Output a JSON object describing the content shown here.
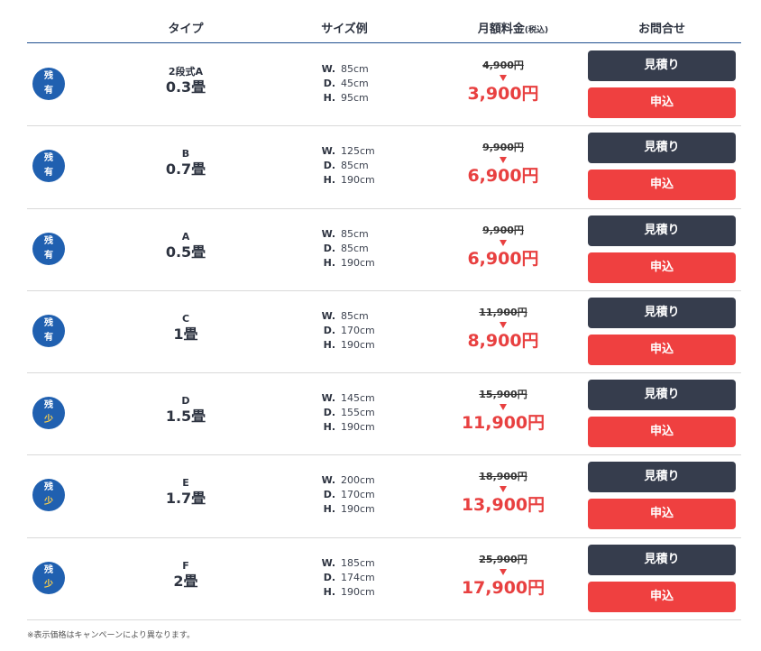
{
  "header": {
    "type": "タイプ",
    "size": "サイズ例",
    "price_main": "月額料金",
    "price_tax": "(税込)",
    "contact": "お問合せ"
  },
  "rows": [
    {
      "stock": [
        "残",
        "有"
      ],
      "stock_level": "有",
      "type": "2段式A",
      "tatami": "0.3畳",
      "w": "85cm",
      "d": "45cm",
      "h": "95cm",
      "old_price": "4,900円",
      "new_price": "3,900円",
      "quote": "見積り",
      "apply": "申込"
    },
    {
      "stock": [
        "残",
        "有"
      ],
      "stock_level": "有",
      "type": "B",
      "tatami": "0.7畳",
      "w": "125cm",
      "d": "85cm",
      "h": "190cm",
      "old_price": "9,900円",
      "new_price": "6,900円",
      "quote": "見積り",
      "apply": "申込"
    },
    {
      "stock": [
        "残",
        "有"
      ],
      "stock_level": "有",
      "type": "A",
      "tatami": "0.5畳",
      "w": "85cm",
      "d": "85cm",
      "h": "190cm",
      "old_price": "9,900円",
      "new_price": "6,900円",
      "quote": "見積り",
      "apply": "申込"
    },
    {
      "stock": [
        "残",
        "有"
      ],
      "stock_level": "有",
      "type": "C",
      "tatami": "1畳",
      "w": "85cm",
      "d": "170cm",
      "h": "190cm",
      "old_price": "11,900円",
      "new_price": "8,900円",
      "quote": "見積り",
      "apply": "申込"
    },
    {
      "stock": [
        "残",
        "少"
      ],
      "stock_level": "少",
      "type": "D",
      "tatami": "1.5畳",
      "w": "145cm",
      "d": "155cm",
      "h": "190cm",
      "old_price": "15,900円",
      "new_price": "11,900円",
      "quote": "見積り",
      "apply": "申込"
    },
    {
      "stock": [
        "残",
        "少"
      ],
      "stock_level": "少",
      "type": "E",
      "tatami": "1.7畳",
      "w": "200cm",
      "d": "170cm",
      "h": "190cm",
      "old_price": "18,900円",
      "new_price": "13,900円",
      "quote": "見積り",
      "apply": "申込"
    },
    {
      "stock": [
        "残",
        "少"
      ],
      "stock_level": "少",
      "type": "F",
      "tatami": "2畳",
      "w": "185cm",
      "d": "174cm",
      "h": "190cm",
      "old_price": "25,900円",
      "new_price": "17,900円",
      "quote": "見積り",
      "apply": "申込"
    }
  ],
  "dim_labels": {
    "w": "W.",
    "d": "D.",
    "h": "H."
  },
  "footnote": "※表示価格はキャンペーンにより異なります。",
  "colors": {
    "accent_blue": "#2060b0",
    "price_red": "#e84040",
    "quote_btn": "#363d4d",
    "apply_btn": "#ef4040",
    "low_stock_text": "#ffd24a"
  }
}
